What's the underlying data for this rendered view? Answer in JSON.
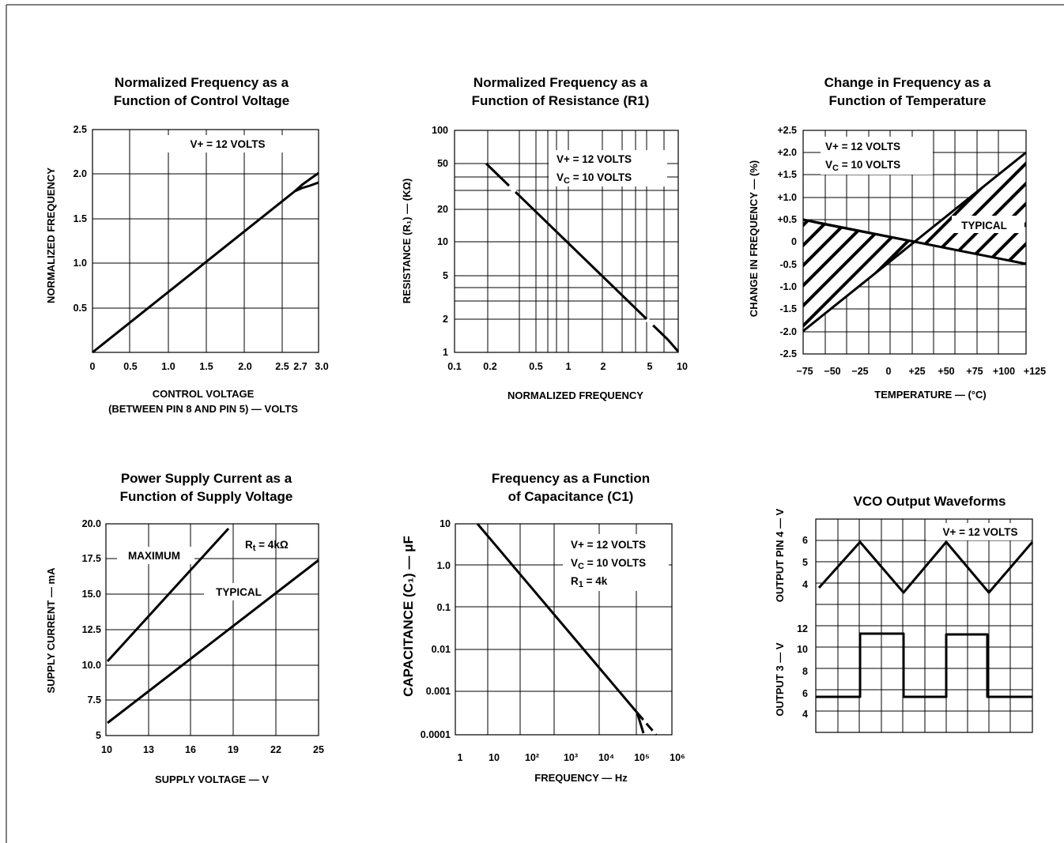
{
  "chart_data": [
    {
      "type": "line",
      "title": [
        "Normalized Frequency as a",
        "Function of Control Voltage"
      ],
      "xlabel": [
        "CONTROL VOLTAGE",
        "(BETWEEN PIN 8 AND PIN 5) — VOLTS"
      ],
      "ylabel": "NORMALIZED FREQUENCY",
      "xlim": [
        0,
        3.0
      ],
      "ylim": [
        0,
        2.5
      ],
      "x_ticks": [
        "0",
        "0.5",
        "1.0",
        "1.5",
        "2.0",
        "2.5",
        "2.7",
        "3.0"
      ],
      "y_ticks": [
        "0.5",
        "1.0",
        "1.5",
        "2.0",
        "2.5"
      ],
      "annotations": [
        "V+ = 12 VOLTS"
      ],
      "series": [
        {
          "x": [
            0,
            1.0,
            2.0,
            2.7,
            2.8,
            2.9,
            3.0
          ],
          "y": [
            0,
            0.67,
            1.34,
            1.8,
            1.87,
            1.94,
            2.01
          ]
        },
        {
          "x": [
            2.7,
            2.8,
            2.9,
            3.0
          ],
          "y": [
            1.8,
            1.85,
            1.88,
            1.91
          ]
        }
      ]
    },
    {
      "type": "line",
      "title": [
        "Normalized Frequency as a",
        "Function of Resistance (R1)"
      ],
      "xlabel": "NORMALIZED FREQUENCY",
      "ylabel": "RESISTANCE (R₁) — (KΩ)",
      "x_scale": "log",
      "y_scale": "log",
      "xlim": [
        0.1,
        10
      ],
      "ylim": [
        1,
        100
      ],
      "x_ticks": [
        "0.1",
        "0.2",
        "0.5",
        "1",
        "2",
        "5",
        "10"
      ],
      "y_ticks": [
        "1",
        "2",
        "5",
        "10",
        "20",
        "50",
        "100"
      ],
      "annotations": [
        "V+ = 12 VOLTS",
        "V_C = 10 VOLTS"
      ],
      "series": [
        {
          "x": [
            0.2,
            0.3,
            0.5,
            1,
            2,
            5,
            10
          ],
          "y": [
            50,
            33,
            20,
            10,
            5,
            2,
            1
          ]
        }
      ]
    },
    {
      "type": "area",
      "title": [
        "Change in Frequency as a",
        "Function of Temperature"
      ],
      "xlabel": "TEMPERATURE — (°C)",
      "ylabel": "CHANGE IN FREQUENCY — (%)",
      "xlim": [
        -75,
        125
      ],
      "ylim": [
        -2.5,
        2.5
      ],
      "x_ticks": [
        "−75",
        "−50",
        "−25",
        "0",
        "+25",
        "+50",
        "+75",
        "+100",
        "+125"
      ],
      "y_ticks": [
        "+2.5",
        "+2.0",
        "+1.5",
        "+1.0",
        "+0.5",
        "0",
        "-0.5",
        "-1.0",
        "-1.5",
        "-2.0",
        "-2.5"
      ],
      "annotations": [
        "V+ = 12 VOLTS",
        "V_C = 10 VOLTS",
        "TYPICAL"
      ],
      "series": [
        {
          "x": [
            -75,
            25,
            125
          ],
          "y": [
            -2.0,
            0,
            2.0
          ]
        },
        {
          "x": [
            -75,
            25,
            125
          ],
          "y": [
            0.5,
            0,
            -0.5
          ]
        },
        {
          "x": [
            -75,
            -50,
            25
          ],
          "y": [
            0.5,
            0.4,
            0
          ]
        }
      ]
    },
    {
      "type": "line",
      "title": [
        "Power Supply Current as a",
        "Function of Supply Voltage"
      ],
      "xlabel": "SUPPLY VOLTAGE — V",
      "ylabel": "SUPPLY CURRENT — mA",
      "xlim": [
        10,
        25
      ],
      "ylim": [
        5,
        20
      ],
      "x_ticks": [
        "10",
        "13",
        "16",
        "19",
        "22",
        "25"
      ],
      "y_ticks": [
        "5",
        "7.5",
        "10.0",
        "12.5",
        "15.0",
        "17.5",
        "20.0"
      ],
      "annotations": [
        "R_t = 4kΩ"
      ],
      "series": [
        {
          "name": "MAXIMUM",
          "x": [
            10,
            18.6
          ],
          "y": [
            10.3,
            19.8
          ]
        },
        {
          "name": "TYPICAL",
          "x": [
            10,
            25
          ],
          "y": [
            5.8,
            17.4
          ]
        }
      ]
    },
    {
      "type": "line",
      "title": [
        "Frequency as a Function",
        "of Capacitance (C1)"
      ],
      "xlabel": "FREQUENCY — Hz",
      "ylabel": "CAPACITANCE (C₁) — μF",
      "x_scale": "log",
      "y_scale": "log",
      "xlim": [
        1,
        1000000
      ],
      "ylim": [
        0.0001,
        10
      ],
      "x_ticks": [
        "1",
        "10",
        "10²",
        "10³",
        "10⁴",
        "10⁵",
        "10⁶"
      ],
      "y_ticks": [
        "0.0001",
        "0.001",
        "0.01",
        "0.1",
        "1.0",
        "10"
      ],
      "annotations": [
        "V+ = 12 VOLTS",
        "V_C = 10 VOLTS",
        "R₁ = 4k"
      ],
      "series": [
        {
          "x": [
            3.5,
            10,
            100,
            1000,
            10000,
            100000,
            200000
          ],
          "y": [
            8,
            2.7,
            0.27,
            0.027,
            0.0027,
            0.00027,
            0.0001
          ]
        }
      ]
    },
    {
      "type": "line",
      "title": "VCO Output Waveforms",
      "ylabel": [
        "OUTPUT 3 — V",
        "OUTPUT PIN 4 — V"
      ],
      "y_ticks_top": [
        "4",
        "5",
        "6"
      ],
      "y_ticks_bottom": [
        "4",
        "6",
        "8",
        "10",
        "12"
      ],
      "annotations": [
        "V+ = 12 VOLTS"
      ],
      "series": [
        {
          "name": "OUTPUT PIN 4",
          "values": [
            3.8,
            5.9,
            3.5,
            5.9,
            3.5,
            5.9
          ]
        },
        {
          "name": "OUTPUT 3",
          "values": [
            5.5,
            5.5,
            11.5,
            11.5,
            5.5,
            5.5,
            11.4,
            11.4,
            5.5,
            5.5
          ]
        }
      ]
    }
  ]
}
